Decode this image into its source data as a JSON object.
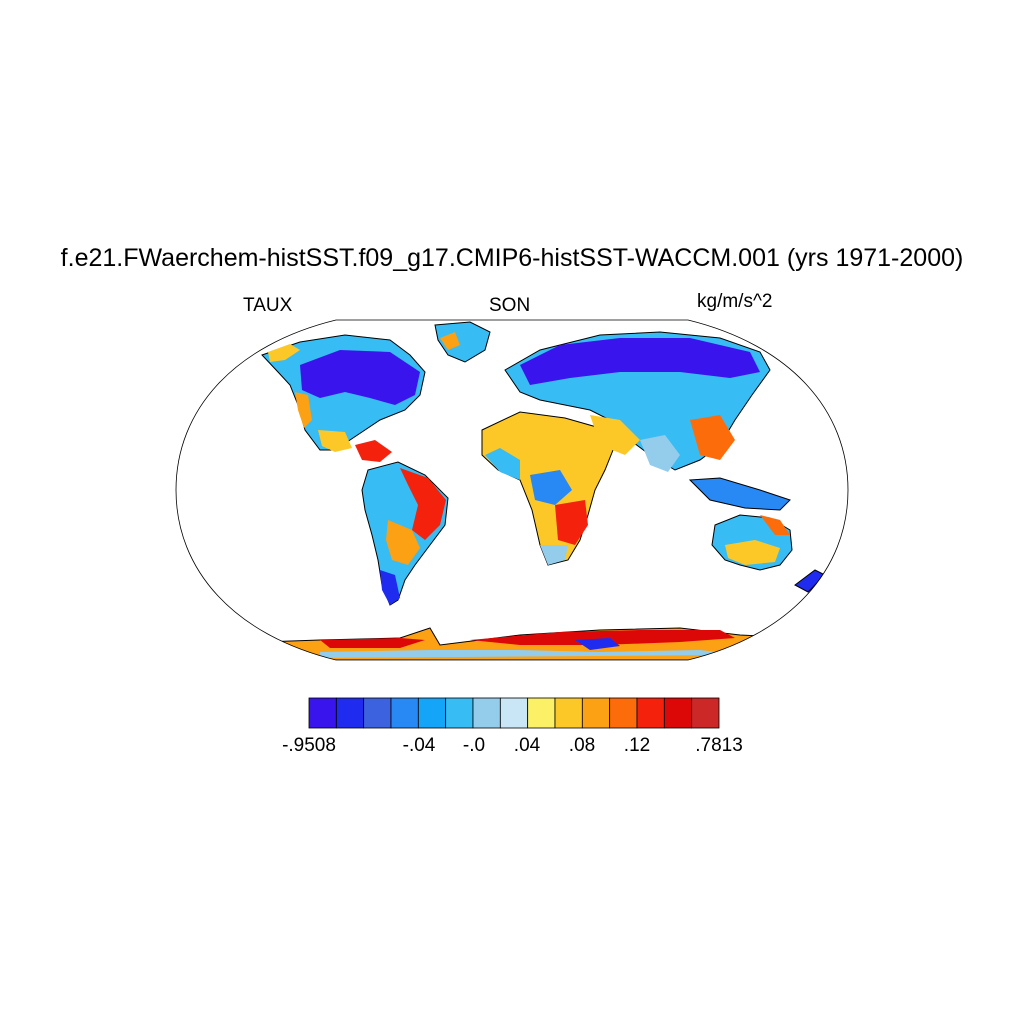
{
  "title": "f.e21.FWaerchem-histSST.f09_g17.CMIP6-histSST-WACCM.001 (yrs 1971-2000)",
  "left_string": "TAUX",
  "center_string": "SON",
  "right_string": "kg/m/s^2",
  "colorbar": {
    "colors": [
      "#3a14ec",
      "#1f2cf0",
      "#3c62e0",
      "#2888f4",
      "#14a4f8",
      "#38bcf4",
      "#94ccec",
      "#c8e6f6",
      "#fcf066",
      "#fcc828",
      "#fca014",
      "#fc6c0a",
      "#f4220c",
      "#dc0808",
      "#cc2828"
    ],
    "labels": [
      {
        "text": "-.9508",
        "slot": 0
      },
      {
        "text": "-.04",
        "slot": 3
      },
      {
        "text": "-.0",
        "slot": 4
      },
      {
        "text": ".04",
        "slot": 5
      },
      {
        "text": ".08",
        "slot": 6
      },
      {
        "text": ".12",
        "slot": 7
      },
      {
        "text": ".7813",
        "slot": 8
      }
    ]
  }
}
